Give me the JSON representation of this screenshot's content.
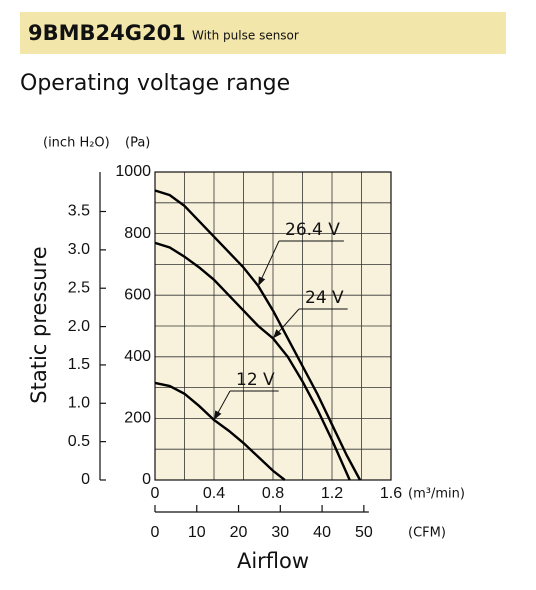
{
  "header": {
    "title": "9BMB24G201",
    "subtitle": "With pulse sensor"
  },
  "section_title": "Operating voltage range",
  "chart_data": {
    "type": "line",
    "x_label": "Airflow",
    "y_label": "Static pressure",
    "x_unit": "(m³/min)",
    "x2_unit": "(CFM)",
    "y_unit": "(Pa)",
    "y2_unit": "(inch H₂O)",
    "xlim": [
      0,
      1.6
    ],
    "xticks": [
      0,
      0.4,
      0.8,
      1.2,
      1.6
    ],
    "minor_xticks": [
      0.2,
      0.6,
      1.0,
      1.4
    ],
    "ylim": [
      0,
      1000
    ],
    "yticks": [
      0,
      200,
      400,
      600,
      800,
      1000
    ],
    "minor_yticks": [
      100,
      300,
      500,
      700,
      900
    ],
    "x2lim": [
      0,
      56.5
    ],
    "x2ticks": [
      0,
      10,
      20,
      30,
      40,
      50
    ],
    "y2lim": [
      0,
      4.015
    ],
    "y2ticks": [
      0,
      0.5,
      {
        "value": 1,
        "label": "1.0"
      },
      1.5,
      {
        "value": 2,
        "label": "2.0"
      },
      2.5,
      {
        "value": 3,
        "label": "3.0"
      },
      3.5
    ],
    "grid": true,
    "series": [
      {
        "name": "26.4 V",
        "color": "#000000",
        "x": [
          0,
          0.1,
          0.2,
          0.3,
          0.4,
          0.5,
          0.6,
          0.7,
          0.8,
          0.9,
          1.0,
          1.1,
          1.2,
          1.3,
          1.39
        ],
        "values": [
          940,
          925,
          890,
          840,
          790,
          740,
          690,
          630,
          550,
          460,
          370,
          280,
          180,
          80,
          0
        ]
      },
      {
        "name": "24 V",
        "color": "#000000",
        "x": [
          0,
          0.1,
          0.2,
          0.3,
          0.4,
          0.5,
          0.6,
          0.7,
          0.8,
          0.9,
          1.0,
          1.1,
          1.2,
          1.32
        ],
        "values": [
          770,
          755,
          725,
          690,
          650,
          600,
          550,
          500,
          460,
          400,
          320,
          230,
          130,
          0
        ]
      },
      {
        "name": "12 V",
        "color": "#000000",
        "x": [
          0,
          0.1,
          0.2,
          0.3,
          0.4,
          0.5,
          0.6,
          0.7,
          0.8,
          0.88
        ],
        "values": [
          315,
          305,
          280,
          240,
          195,
          160,
          120,
          75,
          30,
          0
        ]
      }
    ]
  }
}
